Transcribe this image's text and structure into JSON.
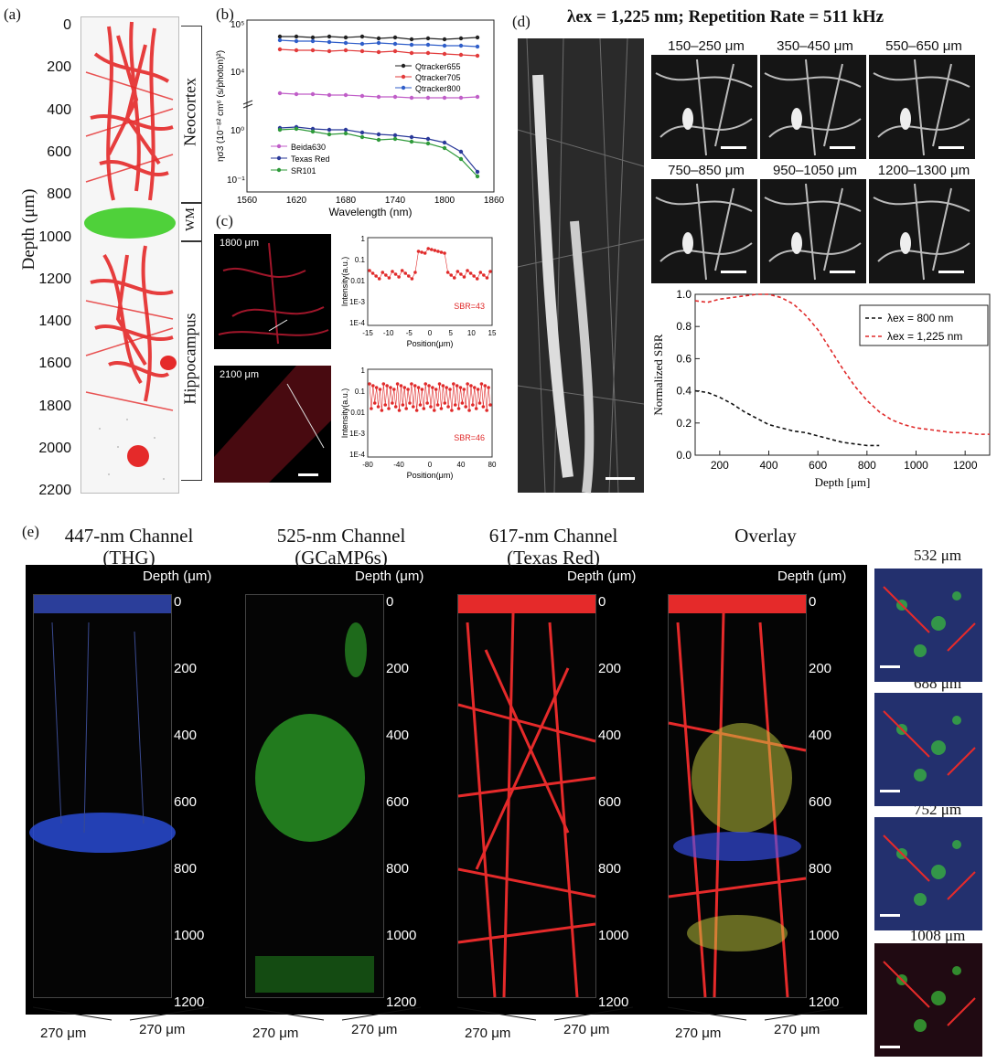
{
  "panel_a": {
    "label": "(a)",
    "ylabel": "Depth (μm)",
    "ticks": [
      "0",
      "200",
      "400",
      "600",
      "800",
      "1000",
      "1200",
      "1400",
      "1600",
      "1800",
      "2000",
      "2200"
    ],
    "regions": [
      "Neocortex",
      "WM",
      "Hippocampus"
    ]
  },
  "panel_b": {
    "label": "(b)",
    "ylabel": "ησ3 (10⁻⁸² cm⁶ (s/photon)²)",
    "xlabel": "Wavelength (nm)",
    "xticks": [
      "1560",
      "1620",
      "1680",
      "1740",
      "1800",
      "1860"
    ],
    "yticks_top": [
      "10⁵",
      "10⁴"
    ],
    "yticks_bottom": [
      "10⁰",
      "10⁻¹"
    ],
    "legend_top": [
      "Qtracker655",
      "Qtracker705",
      "Qtracker800"
    ],
    "legend_bottom": [
      "Beida630",
      "Texas Red",
      "SR101"
    ],
    "colors": {
      "q655": "#222222",
      "q705": "#e23b3b",
      "q800": "#2f5ec9",
      "beida": "#c05ec8",
      "texas": "#2b3a9a",
      "sr101": "#2f9a3a"
    }
  },
  "panel_c": {
    "label": "(c)",
    "img1_label": "1800 μm",
    "img2_label": "2100 μm",
    "ylabel": "Intensity(a.u.)",
    "xlabel": "Position(μm)",
    "plot1_xticks": [
      "-15",
      "-10",
      "-5",
      "0",
      "5",
      "10",
      "15"
    ],
    "plot2_xticks": [
      "-80",
      "-40",
      "0",
      "40",
      "80"
    ],
    "yticks": [
      "1",
      "0.1",
      "0.01",
      "1E-3",
      "1E-4"
    ],
    "sbr1": "SBR=43",
    "sbr2": "SBR=46"
  },
  "panel_d": {
    "label": "(d)",
    "title": "λex = 1,225 nm; Repetition Rate = 511 kHz",
    "tiles": [
      "150–250 μm",
      "350–450 μm",
      "550–650 μm",
      "750–850 μm",
      "950–1050 μm",
      "1200–1300 μm"
    ]
  },
  "chart_data": {
    "type": "line",
    "xlabel": "Depth [μm]",
    "ylabel": "Normalized SBR",
    "xlim": [
      100,
      1300
    ],
    "ylim": [
      0,
      1.0
    ],
    "xticks": [
      "200",
      "400",
      "600",
      "800",
      "1000",
      "1200"
    ],
    "yticks": [
      "0.0",
      "0.2",
      "0.4",
      "0.6",
      "0.8",
      "1.0"
    ],
    "series": [
      {
        "name": "λex = 800 nm",
        "color": "#111111",
        "x": [
          100,
          150,
          200,
          250,
          300,
          350,
          400,
          450,
          500,
          550,
          600,
          650,
          700,
          750,
          800,
          850
        ],
        "y": [
          0.4,
          0.39,
          0.36,
          0.32,
          0.27,
          0.23,
          0.19,
          0.17,
          0.15,
          0.14,
          0.12,
          0.1,
          0.08,
          0.07,
          0.06,
          0.06
        ]
      },
      {
        "name": "λex = 1,225 nm",
        "color": "#e02a2a",
        "x": [
          100,
          150,
          200,
          250,
          300,
          350,
          400,
          450,
          500,
          550,
          600,
          650,
          700,
          750,
          800,
          850,
          900,
          950,
          1000,
          1050,
          1100,
          1150,
          1200,
          1250,
          1300
        ],
        "y": [
          0.96,
          0.95,
          0.97,
          0.98,
          0.99,
          1.0,
          1.0,
          0.98,
          0.94,
          0.87,
          0.78,
          0.66,
          0.54,
          0.43,
          0.34,
          0.27,
          0.22,
          0.19,
          0.17,
          0.16,
          0.15,
          0.14,
          0.14,
          0.13,
          0.13
        ]
      }
    ]
  },
  "panel_e": {
    "label": "(e)",
    "channels": [
      {
        "title1": "447-nm Channel",
        "title2": "(THG)"
      },
      {
        "title1": "525-nm Channel",
        "title2": "(GCaMP6s)"
      },
      {
        "title1": "617-nm Channel",
        "title2": "(Texas Red)"
      },
      {
        "title1": "Overlay",
        "title2": ""
      }
    ],
    "depth_label": "Depth (μm)",
    "depth_ticks": [
      "0",
      "200",
      "400",
      "600",
      "800",
      "1000",
      "1200"
    ],
    "dim": "270 μm",
    "side": [
      "532 μm",
      "688 μm",
      "752 μm",
      "1008 μm"
    ]
  }
}
